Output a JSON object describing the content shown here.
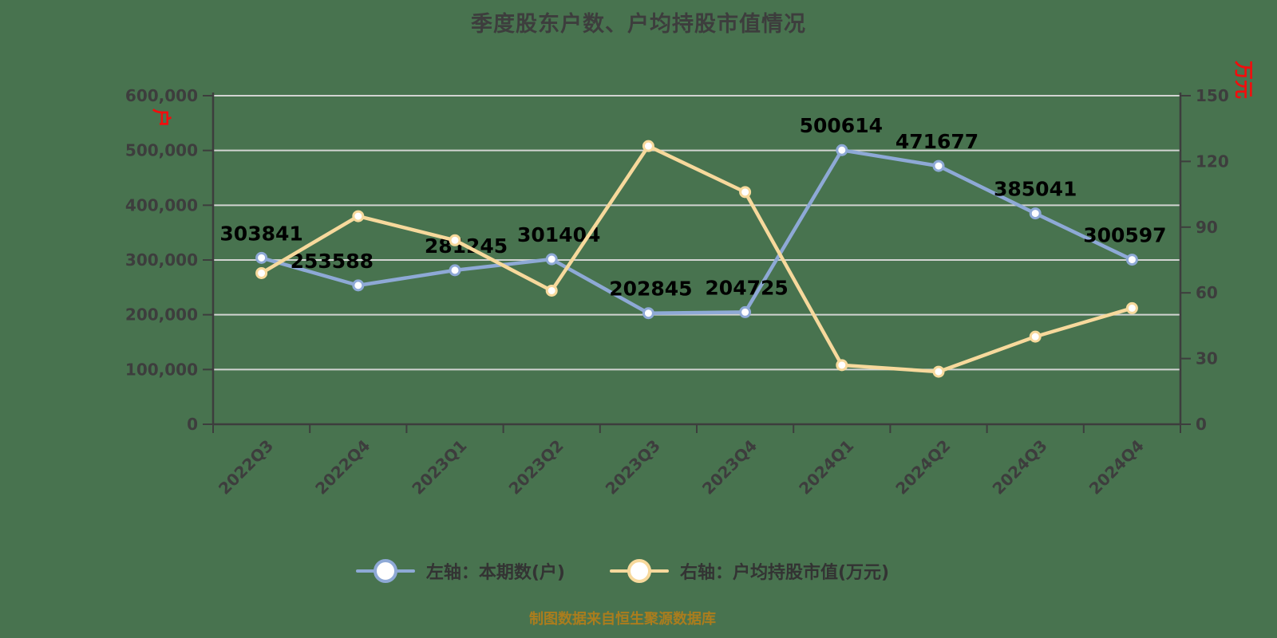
{
  "title": "季度股东户数、户均持股市值情况",
  "footer": "制图数据来自恒生聚源数据库",
  "left_axis": {
    "unit": "户",
    "tick_labels": [
      "0",
      "100,000",
      "200,000",
      "300,000",
      "400,000",
      "500,000",
      "600,000"
    ]
  },
  "right_axis": {
    "unit": "万元",
    "tick_labels": [
      "0",
      "30",
      "60",
      "90",
      "120",
      "150"
    ]
  },
  "legend": {
    "items": [
      {
        "label": "左轴：本期数(户)",
        "color": "#8ea9d6"
      },
      {
        "label": "右轴：户均持股市值(万元)",
        "color": "#f7d99c"
      }
    ]
  },
  "chart_data": {
    "type": "line",
    "title": "季度股东户数、户均持股市值情况",
    "categories": [
      "2022Q3",
      "2022Q4",
      "2023Q1",
      "2023Q2",
      "2023Q3",
      "2023Q4",
      "2024Q1",
      "2024Q2",
      "2024Q3",
      "2024Q4"
    ],
    "series": [
      {
        "name": "左轴：本期数(户)",
        "axis": "left",
        "color": "#8ea9d6",
        "marker_fill": "#ffffff",
        "values": [
          303841,
          253588,
          281245,
          301404,
          202845,
          204725,
          500614,
          471677,
          385041,
          300597
        ],
        "data_labels": [
          "303841",
          "253588",
          "281245",
          "301404",
          "202845",
          "204725",
          "500614",
          "471677",
          "385041",
          "300597"
        ]
      },
      {
        "name": "右轴：户均持股市值(万元)",
        "axis": "right",
        "color": "#f7d99c",
        "marker_fill": "#ffffff",
        "values": [
          69,
          95,
          84,
          61,
          127,
          106,
          27,
          24,
          40,
          53
        ],
        "data_labels": null
      }
    ],
    "left_ylim": [
      0,
      600000
    ],
    "right_ylim": [
      0,
      150
    ],
    "grid": true,
    "legend_position": "bottom"
  },
  "colors": {
    "background": "#48734f",
    "grid": "#d2d4d2",
    "axis": "#3d3d3d",
    "tick_text": "#3d3d3d",
    "data_label": "#000000",
    "footer_text": "#ab7d1d",
    "unit_text": "#f20d0d"
  }
}
